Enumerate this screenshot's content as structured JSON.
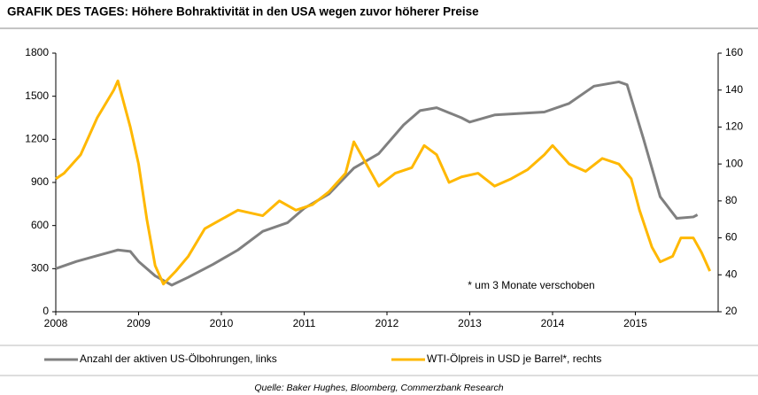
{
  "chart_data": {
    "type": "line",
    "title": "GRAFIK DES TAGES: Höhere Bohraktivität in den USA wegen zuvor höherer Preise",
    "source": "Quelle: Baker Hughes, Bloomberg, Commerzbank Research",
    "annotation": "* um 3 Monate verschoben",
    "xlim": [
      2008,
      2016
    ],
    "xticks": [
      2008,
      2009,
      2010,
      2011,
      2012,
      2013,
      2014,
      2015
    ],
    "ylim": [
      0,
      1800
    ],
    "yticks": [
      0,
      300,
      600,
      900,
      1200,
      1500,
      1800
    ],
    "y2lim": [
      20,
      160
    ],
    "y2ticks": [
      20,
      40,
      60,
      80,
      100,
      120,
      140,
      160
    ],
    "series": [
      {
        "name": "Anzahl der aktiven US-Ölbohrungen, links",
        "color": "#808080",
        "axis": "y",
        "x": [
          2008.0,
          2008.25,
          2008.5,
          2008.75,
          2008.9,
          2009.0,
          2009.2,
          2009.4,
          2009.6,
          2009.9,
          2010.2,
          2010.5,
          2010.8,
          2011.0,
          2011.3,
          2011.6,
          2011.9,
          2012.2,
          2012.4,
          2012.6,
          2012.9,
          2013.0,
          2013.3,
          2013.6,
          2013.9,
          2014.2,
          2014.5,
          2014.8,
          2014.9,
          2015.1,
          2015.3,
          2015.5,
          2015.7,
          2015.75
        ],
        "values": [
          300,
          350,
          390,
          430,
          420,
          350,
          250,
          185,
          240,
          330,
          430,
          560,
          620,
          720,
          820,
          1000,
          1100,
          1300,
          1400,
          1420,
          1350,
          1320,
          1370,
          1380,
          1390,
          1450,
          1570,
          1600,
          1580,
          1200,
          800,
          650,
          660,
          675
        ]
      },
      {
        "name": "WTI-Ölpreis in USD je Barrel*, rechts",
        "color": "#ffb800",
        "axis": "y2",
        "x": [
          2008.0,
          2008.1,
          2008.3,
          2008.5,
          2008.7,
          2008.75,
          2008.9,
          2009.0,
          2009.1,
          2009.2,
          2009.3,
          2009.45,
          2009.6,
          2009.8,
          2010.0,
          2010.2,
          2010.5,
          2010.7,
          2010.9,
          2011.1,
          2011.3,
          2011.5,
          2011.6,
          2011.75,
          2011.9,
          2012.1,
          2012.3,
          2012.45,
          2012.6,
          2012.75,
          2012.9,
          2013.1,
          2013.3,
          2013.5,
          2013.7,
          2013.9,
          2014.0,
          2014.2,
          2014.4,
          2014.6,
          2014.8,
          2014.95,
          2015.05,
          2015.2,
          2015.3,
          2015.45,
          2015.55,
          2015.7,
          2015.8,
          2015.9
        ],
        "values": [
          92,
          95,
          105,
          125,
          140,
          145,
          120,
          100,
          70,
          45,
          35,
          42,
          50,
          65,
          70,
          75,
          72,
          80,
          75,
          78,
          85,
          95,
          112,
          100,
          88,
          95,
          98,
          110,
          105,
          90,
          93,
          95,
          88,
          92,
          97,
          105,
          110,
          100,
          96,
          103,
          100,
          92,
          75,
          55,
          47,
          50,
          60,
          60,
          52,
          42
        ]
      }
    ]
  }
}
